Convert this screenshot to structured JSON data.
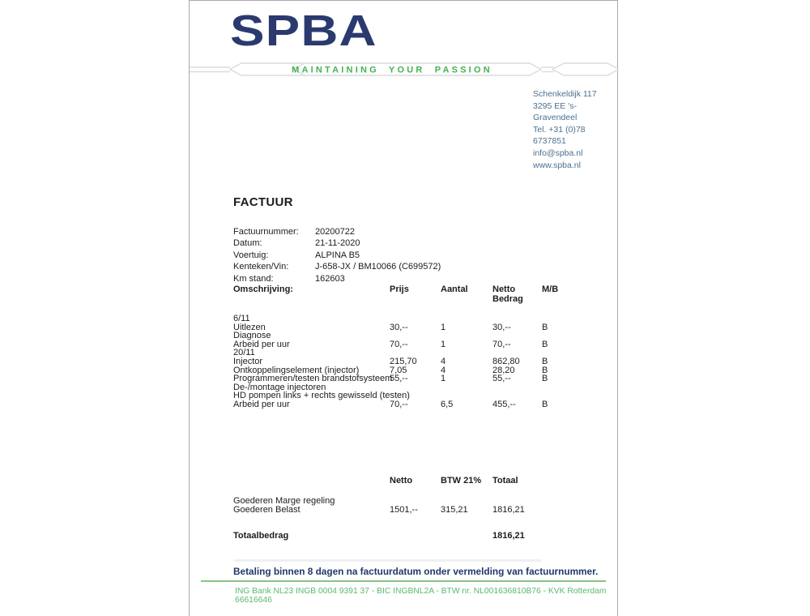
{
  "brand": {
    "logo_text": "SPBA",
    "tagline": "MAINTAINING YOUR PASSION",
    "colors": {
      "logo_navy": "#2b3a6e",
      "tagline_green": "#41b353",
      "contact_blue": "#4a708f",
      "payment_navy": "#20386a",
      "rule_green": "#84c484",
      "bank_green": "#58ba6b"
    }
  },
  "contact": {
    "lines": [
      "Schenkeldijk 117",
      "3295 EE  's-Gravendeel",
      "Tel. +31 (0)78 6737851",
      "info@spba.nl",
      "www.spba.nl"
    ]
  },
  "invoice": {
    "title": "FACTUUR",
    "details": [
      {
        "label": "Factuurnummer:",
        "value": "20200722"
      },
      {
        "label": "Datum:",
        "value": "21-11-2020"
      },
      {
        "label": "Voertuig:",
        "value": "ALPINA B5"
      },
      {
        "label": "Kenteken/Vin:",
        "value": "J-658-JX / BM10066 (C699572)"
      },
      {
        "label": "Km stand:",
        "value": "162603"
      }
    ]
  },
  "items_table": {
    "headers": {
      "description": "Omschrijving:",
      "price": "Prijs",
      "qty": "Aantal",
      "net": "Netto Bedrag",
      "mb": "M/B"
    },
    "rows": [
      {
        "description": "6/11",
        "price": "",
        "qty": "",
        "net": "",
        "mb": ""
      },
      {
        "description": "Uitlezen",
        "price": "30,--",
        "qty": "1",
        "net": "30,--",
        "mb": "B"
      },
      {
        "description": "Diagnose",
        "price": "",
        "qty": "",
        "net": "",
        "mb": ""
      },
      {
        "description": "Arbeid per uur",
        "price": "70,--",
        "qty": "1",
        "net": "70,--",
        "mb": "B"
      },
      {
        "description": "20/11",
        "price": "",
        "qty": "",
        "net": "",
        "mb": ""
      },
      {
        "description": "Injector",
        "price": "215,70",
        "qty": "4",
        "net": "862,80",
        "mb": "B"
      },
      {
        "description": "Ontkoppelingselement (injector)",
        "price": "7,05",
        "qty": "4",
        "net": "28,20",
        "mb": "B"
      },
      {
        "description": "Programmeren/testen brandstofsysteem",
        "price": "55,--",
        "qty": "1",
        "net": "55,--",
        "mb": "B"
      },
      {
        "description": "De-/montage injectoren",
        "price": "",
        "qty": "",
        "net": "",
        "mb": ""
      },
      {
        "description": "HD pompen links + rechts gewisseld (testen)",
        "price": "",
        "qty": "",
        "net": "",
        "mb": ""
      },
      {
        "description": "Arbeid per uur",
        "price": "70,--",
        "qty": "6,5",
        "net": "455,--",
        "mb": "B"
      }
    ]
  },
  "totals": {
    "headers": {
      "net": "Netto",
      "vat": "BTW 21%",
      "total": "Totaal"
    },
    "rows": [
      {
        "label": "Goederen Marge regeling",
        "net": "",
        "vat": "",
        "total": ""
      },
      {
        "label": "Goederen Belast",
        "net": "1501,--",
        "vat": "315,21",
        "total": "1816,21"
      }
    ],
    "grand_label": "Totaalbedrag",
    "grand_total": "1816,21"
  },
  "footer": {
    "payment_note": "Betaling binnen 8 dagen na factuurdatum onder vermelding van factuurnummer.",
    "bank_line": "ING Bank NL23 INGB 0004 9391 37 - BIC INGBNL2A - BTW nr. NL001636810B76 - KVK Rotterdam 66616646"
  }
}
